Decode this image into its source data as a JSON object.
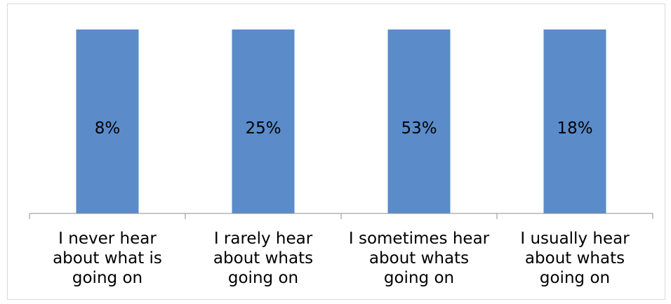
{
  "chart_data": {
    "type": "bar",
    "categories": [
      "I never hear about  what is going on",
      "I rarely hear about whats going on",
      "I  sometimes hear about whats going on",
      "I usually hear about whats going on"
    ],
    "values": [
      8,
      25,
      53,
      18
    ],
    "data_labels": [
      "8%",
      "25%",
      "53%",
      "18%"
    ],
    "bar_color": "#5B8BC9",
    "axis_color": "#8c8c8c",
    "grid": false,
    "legend": "none"
  }
}
